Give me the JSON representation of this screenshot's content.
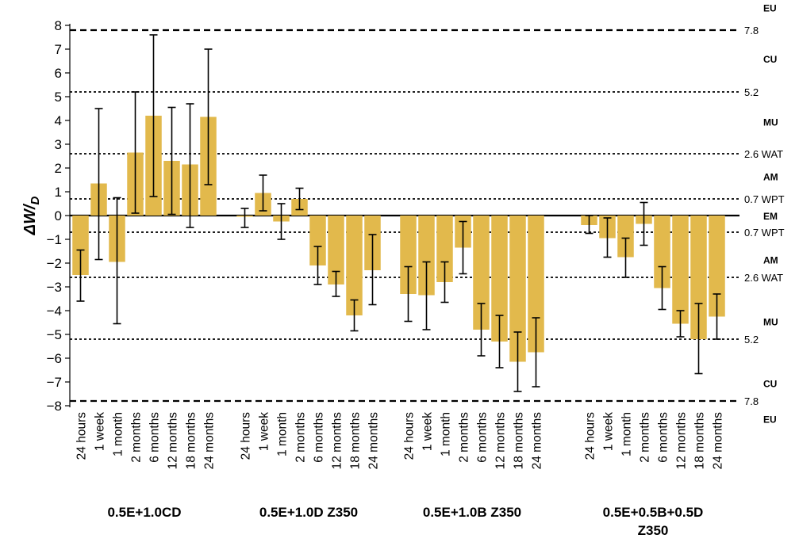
{
  "chart_data": {
    "type": "bar",
    "ylabel_main": "ΔW/",
    "ylabel_sub": "D",
    "ylim": [
      -8,
      8
    ],
    "yticks": [
      8,
      7,
      6,
      5,
      4,
      3,
      2,
      1,
      0,
      -1,
      -2,
      -3,
      -4,
      -5,
      -6,
      -7,
      -8
    ],
    "bar_color": "#e2b94c",
    "groups": [
      {
        "label": "0.5E+1.0CD",
        "categories": [
          "24 hours",
          "1 week",
          "1 month",
          "2 months",
          "6 months",
          "12 months",
          "18 months",
          "24 months"
        ],
        "values": [
          -2.5,
          1.35,
          -1.95,
          2.65,
          4.2,
          2.3,
          2.15,
          4.15
        ],
        "err_low": [
          -3.6,
          -1.85,
          -4.55,
          0.1,
          0.8,
          0.05,
          -0.5,
          1.3
        ],
        "err_high": [
          -1.45,
          4.5,
          0.75,
          5.2,
          7.6,
          4.55,
          4.7,
          7.0
        ]
      },
      {
        "label": "0.5E+1.0D Z350",
        "categories": [
          "24 hours",
          "1 week",
          "1 month",
          "2 months",
          "6 months",
          "12 months",
          "18 months",
          "24 months"
        ],
        "values": [
          -0.05,
          0.95,
          -0.25,
          0.7,
          -2.1,
          -2.9,
          -4.2,
          -2.3
        ],
        "err_low": [
          -0.5,
          0.2,
          -1.0,
          0.25,
          -2.9,
          -3.4,
          -4.85,
          -3.75
        ],
        "err_high": [
          0.3,
          1.7,
          0.5,
          1.15,
          -1.3,
          -2.35,
          -3.55,
          -0.8
        ]
      },
      {
        "label": "0.5E+1.0B Z350",
        "categories": [
          "24 hours",
          "1 week",
          "1 month",
          "2 months",
          "6 months",
          "12 months",
          "18 months",
          "24 months"
        ],
        "values": [
          -3.3,
          -3.35,
          -2.8,
          -1.35,
          -4.8,
          -5.3,
          -6.15,
          -5.75
        ],
        "err_low": [
          -4.45,
          -4.8,
          -3.65,
          -2.45,
          -5.9,
          -6.4,
          -7.4,
          -7.2
        ],
        "err_high": [
          -2.15,
          -1.95,
          -1.95,
          -0.25,
          -3.7,
          -4.2,
          -4.9,
          -4.3
        ]
      },
      {
        "label": "0.5E+0.5B+0.5D",
        "label2": "Z350",
        "categories": [
          "24 hours",
          "1 week",
          "1 month",
          "2 months",
          "6 months",
          "12 months",
          "18 months",
          "24 months"
        ],
        "values": [
          -0.4,
          -0.95,
          -1.75,
          -0.35,
          -3.05,
          -4.55,
          -5.2,
          -4.25
        ],
        "err_low": [
          -0.75,
          -1.75,
          -2.6,
          -1.25,
          -3.95,
          -5.1,
          -6.65,
          -5.2
        ],
        "err_high": [
          0.0,
          -0.1,
          -0.95,
          0.55,
          -2.15,
          -4.0,
          -3.7,
          -3.3
        ]
      }
    ],
    "reference_lines": [
      {
        "value": 7.8,
        "label": "7.8",
        "style": "dashed-heavy"
      },
      {
        "value": 5.2,
        "label": "5.2",
        "style": "dotted"
      },
      {
        "value": 2.6,
        "label": "2.6  WAT",
        "style": "dotted"
      },
      {
        "value": 0.7,
        "label": "0.7  WPT",
        "style": "dotted"
      },
      {
        "value": 0,
        "label": "",
        "style": "solid"
      },
      {
        "value": -0.7,
        "label": "0.7  WPT",
        "style": "dotted"
      },
      {
        "value": -2.6,
        "label": "2.6  WAT",
        "style": "dotted"
      },
      {
        "value": -5.2,
        "label": "5.2",
        "style": "dotted"
      },
      {
        "value": -7.8,
        "label": "7.8",
        "style": "dashed-heavy"
      }
    ],
    "zones": [
      {
        "label": "EU",
        "value": 8.75
      },
      {
        "label": "CU",
        "value": 6.6
      },
      {
        "label": "MU",
        "value": 3.95
      },
      {
        "label": "AM",
        "value": 1.65
      },
      {
        "label": "EM",
        "value": 0
      },
      {
        "label": "AM",
        "value": -1.85
      },
      {
        "label": "MU",
        "value": -4.45
      },
      {
        "label": "CU",
        "value": -7.05
      },
      {
        "label": "EU",
        "value": -8.55
      }
    ]
  }
}
